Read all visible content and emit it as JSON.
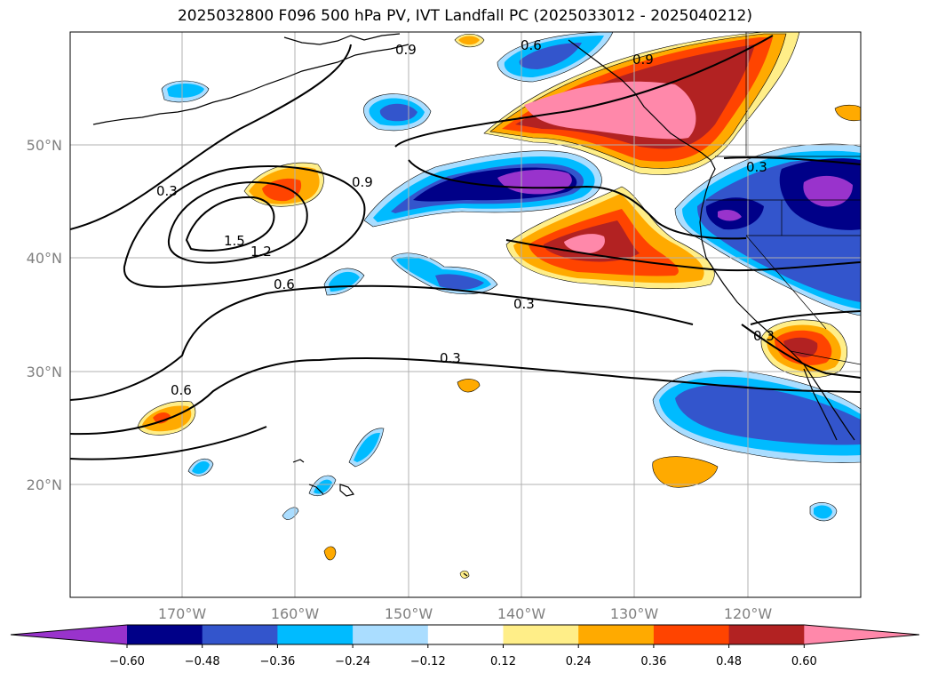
{
  "title": "2025032800 F096 500 hPa PV, IVT Landfall PC (2025033012 - 2025040212)",
  "lat_ticks": [
    "50°N",
    "40°N",
    "30°N",
    "20°N"
  ],
  "lon_ticks": [
    "170°W",
    "160°W",
    "150°W",
    "140°W",
    "130°W",
    "120°W"
  ],
  "colorbar": {
    "colors": [
      "#9933cc",
      "#000088",
      "#3355cc",
      "#00bbff",
      "#aaddff",
      "#ffffff",
      "#ffee88",
      "#ffaa00",
      "#ff4400",
      "#b22222",
      "#ff88aa"
    ],
    "labels": [
      "−0.60",
      "−0.48",
      "−0.36",
      "−0.24",
      "−0.12",
      "0.12",
      "0.24",
      "0.36",
      "0.48",
      "0.60"
    ]
  },
  "contour_labels": [
    "0.9",
    "0.6",
    "0.9",
    "0.3",
    "0.3",
    "0.9",
    "1.5",
    "1.2",
    "0.6",
    "0.3",
    "0.3",
    "0.3",
    "0.6"
  ]
}
